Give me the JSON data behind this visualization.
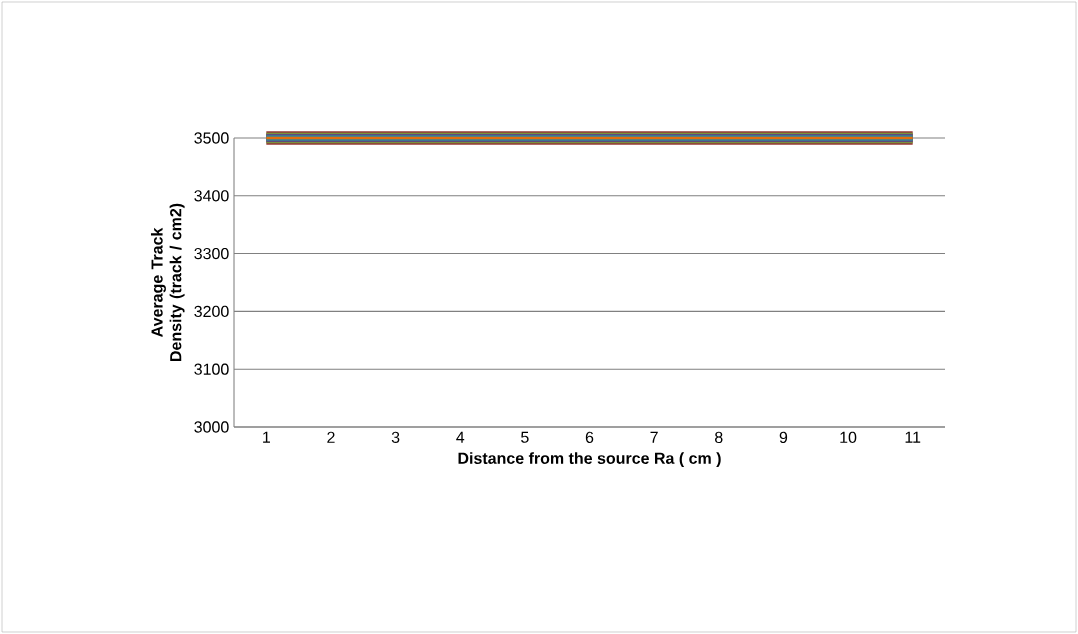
{
  "chart_data": {
    "type": "line",
    "xlabel": "Distance from the source Ra ( cm )",
    "ylabel": "Average Track Density (track / cm2)",
    "categories": [
      "1",
      "2",
      "3",
      "4",
      "5",
      "6",
      "7",
      "8",
      "9",
      "10",
      "11"
    ],
    "ylim": [
      3000,
      3500
    ],
    "yticks": [
      3000,
      3100,
      3200,
      3300,
      3400,
      3500
    ],
    "grid": "y",
    "series": [
      {
        "color": "#953735",
        "values": [
          3500,
          3500,
          3500,
          3500,
          3500,
          3500,
          3500,
          3500,
          3500,
          3500,
          3500
        ]
      },
      {
        "color": "#77933c",
        "values": [
          3500,
          3500,
          3500,
          3500,
          3500,
          3500,
          3500,
          3500,
          3500,
          3500,
          3500
        ]
      },
      {
        "color": "#604a7b",
        "values": [
          3500,
          3500,
          3500,
          3500,
          3500,
          3500,
          3500,
          3500,
          3500,
          3500,
          3500
        ]
      },
      {
        "color": "#31859c",
        "values": [
          3500,
          3500,
          3500,
          3500,
          3500,
          3500,
          3500,
          3500,
          3500,
          3500,
          3500
        ]
      },
      {
        "color": "#e46c0a",
        "values": [
          3500,
          3500,
          3500,
          3500,
          3500,
          3500,
          3500,
          3500,
          3500,
          3500,
          3500
        ]
      }
    ]
  }
}
